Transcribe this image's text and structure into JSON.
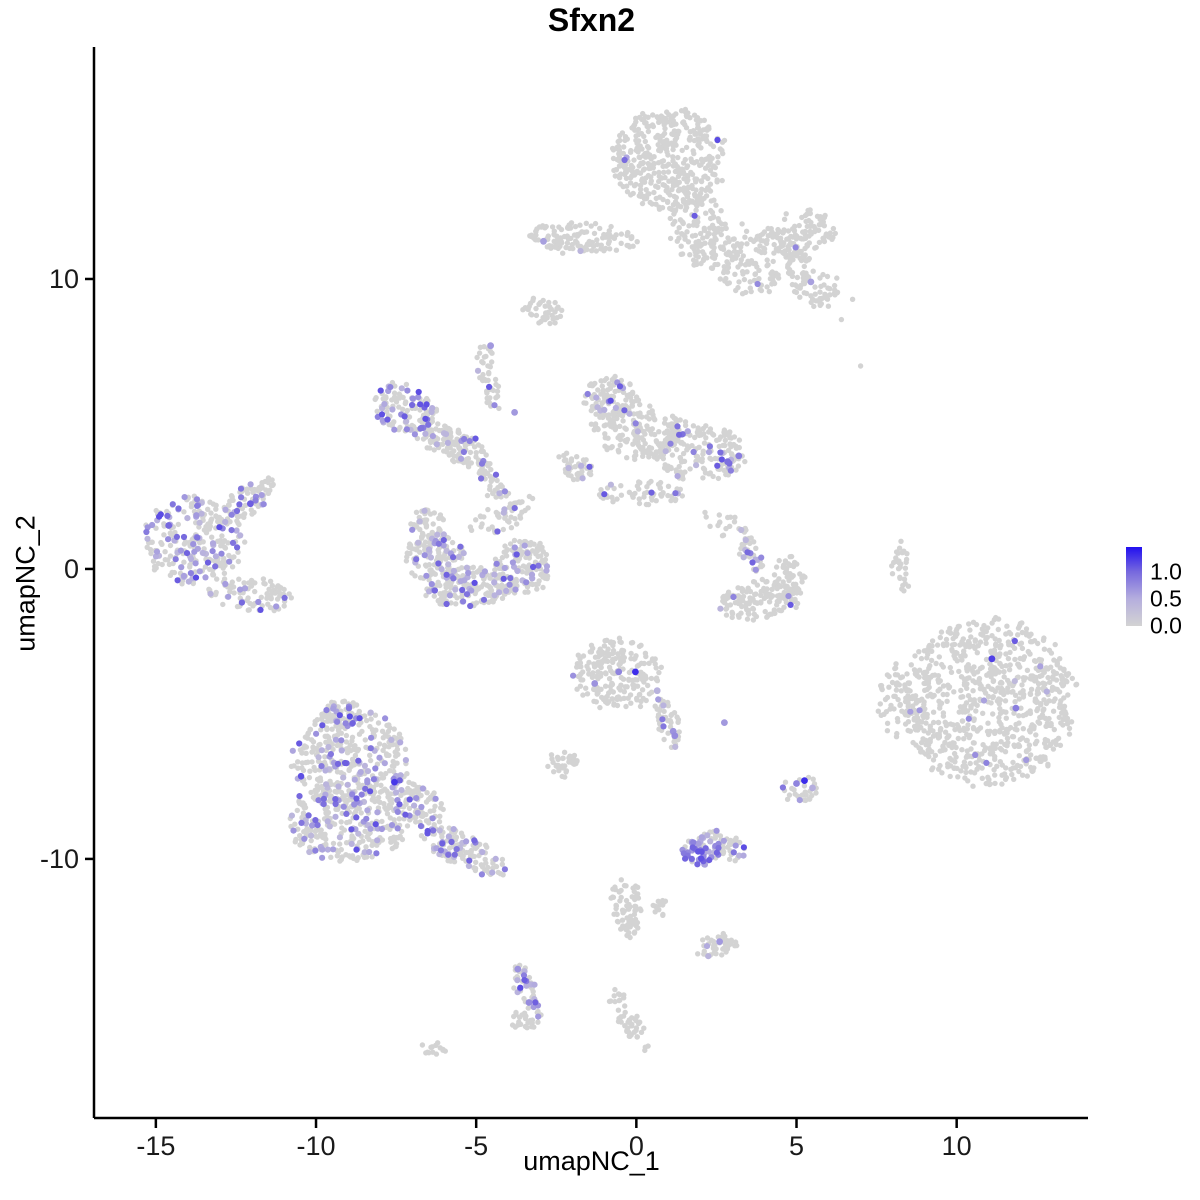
{
  "title": "Sfxn2",
  "axes": {
    "x": {
      "label": "umapNC_1",
      "ticks": [
        -15,
        -10,
        -5,
        0,
        5,
        10
      ],
      "range": [
        -16.9,
        14.1
      ]
    },
    "y": {
      "label": "umapNC_2",
      "ticks": [
        -10,
        0,
        10
      ],
      "range": [
        -18.9,
        18.0
      ]
    }
  },
  "legend": {
    "labels": [
      "1.0",
      "0.5",
      "0.0"
    ],
    "values": [
      1.0,
      0.5,
      0.0
    ],
    "max_value": 1.45,
    "gradient_top_color": "#2210F0",
    "gradient_bottom_color": "#D3D3D3"
  },
  "colors": {
    "background": "#ffffff",
    "axis_line": "#000000",
    "tick_text": "#1a1a1a",
    "non_expressing": "#D3D3D3",
    "scale_anchors": [
      [
        0,
        "#D3D3D3"
      ],
      [
        0.5,
        "#B5AEDE"
      ],
      [
        1.0,
        "#7668DE"
      ],
      [
        1.45,
        "#2210F0"
      ]
    ]
  },
  "chart_data": {
    "type": "scatter",
    "title": "Sfxn2",
    "xlabel": "umapNC_1",
    "ylabel": "umapNC_2",
    "xlim": [
      -16.9,
      14.1
    ],
    "ylim": [
      -18.9,
      18.0
    ],
    "grid": false,
    "legend_position": "right",
    "seed": 20240613,
    "point_radius_gray": 2.7,
    "point_radius_expr": 3.1,
    "point_radius_accent": 3.4,
    "expression_value_base": 0.35,
    "expression_value_span": 0.8,
    "clusters": [
      {
        "name": "top-main",
        "cx": 1.0,
        "cy": 14.1,
        "a": 1.75,
        "b": 1.55,
        "rot": 0,
        "n": 430,
        "frac": 0.02
      },
      {
        "name": "top-neck",
        "cx": 1.95,
        "cy": 11.7,
        "a": 0.9,
        "b": 1.15,
        "rot": 0,
        "n": 130,
        "frac": 0.008
      },
      {
        "name": "top-right-arm",
        "cx": 3.85,
        "cy": 10.6,
        "a": 1.45,
        "b": 0.95,
        "rot": -15,
        "n": 170,
        "frac": 0.006
      },
      {
        "name": "top-right-lobe",
        "cx": 5.3,
        "cy": 11.5,
        "a": 0.95,
        "b": 0.8,
        "rot": 0,
        "n": 90,
        "frac": 0.01
      },
      {
        "name": "top-right-tip",
        "cx": 5.6,
        "cy": 9.7,
        "a": 0.75,
        "b": 0.6,
        "rot": 0,
        "n": 60,
        "frac": 0.02
      },
      {
        "name": "top-left-band",
        "cx": -1.8,
        "cy": 11.4,
        "a": 1.75,
        "b": 0.45,
        "rot": 3,
        "n": 130,
        "frac": 0.008
      },
      {
        "name": "top-left-blob",
        "cx": -2.9,
        "cy": 8.85,
        "a": 0.6,
        "b": 0.4,
        "rot": 0,
        "n": 40,
        "frac": 0.0
      },
      {
        "name": "wing-tip",
        "cx": -7.2,
        "cy": 5.5,
        "a": 1.0,
        "b": 0.72,
        "rot": 25,
        "n": 120,
        "frac": 0.28
      },
      {
        "name": "wing-body",
        "cx": -5.8,
        "cy": 4.35,
        "a": 1.3,
        "b": 0.5,
        "rot": 28,
        "n": 130,
        "frac": 0.1
      },
      {
        "name": "wing-strand",
        "cx": -4.5,
        "cy": 3.0,
        "a": 0.75,
        "b": 0.3,
        "rot": 60,
        "n": 40,
        "frac": 0.06
      },
      {
        "name": "upper-strand",
        "cx": -4.6,
        "cy": 6.6,
        "a": 1.05,
        "b": 0.3,
        "rot": 80,
        "n": 45,
        "frac": 0.05
      },
      {
        "name": "crescent-tip",
        "cx": -6.55,
        "cy": 1.6,
        "a": 0.5,
        "b": 0.45,
        "rot": 0,
        "n": 40,
        "frac": 0.1
      },
      {
        "name": "crescent-left",
        "cx": -6.3,
        "cy": 0.4,
        "a": 0.9,
        "b": 0.8,
        "rot": 0,
        "n": 130,
        "frac": 0.16
      },
      {
        "name": "crescent-bottom",
        "cx": -5.2,
        "cy": -0.65,
        "a": 1.45,
        "b": 0.6,
        "rot": -5,
        "n": 170,
        "frac": 0.22
      },
      {
        "name": "crescent-right",
        "cx": -3.55,
        "cy": 0.05,
        "a": 0.9,
        "b": 0.85,
        "rot": 0,
        "n": 140,
        "frac": 0.12
      },
      {
        "name": "crescent-arc",
        "cx": -4.2,
        "cy": 1.75,
        "a": 1.2,
        "b": 0.4,
        "rot": -25,
        "n": 50,
        "frac": 0.04
      },
      {
        "name": "center-top",
        "cx": -0.8,
        "cy": 5.9,
        "a": 0.9,
        "b": 0.65,
        "rot": 0,
        "n": 110,
        "frac": 0.1
      },
      {
        "name": "center-body",
        "cx": 0.05,
        "cy": 4.7,
        "a": 1.45,
        "b": 0.8,
        "rot": 0,
        "n": 180,
        "frac": 0.05
      },
      {
        "name": "center-right",
        "cx": 2.0,
        "cy": 4.0,
        "a": 1.35,
        "b": 0.85,
        "rot": 0,
        "n": 180,
        "frac": 0.1
      },
      {
        "name": "center-left-spur",
        "cx": -1.95,
        "cy": 3.5,
        "a": 0.6,
        "b": 0.4,
        "rot": 20,
        "n": 45,
        "frac": 0.04
      },
      {
        "name": "center-bottom",
        "cx": 0.1,
        "cy": 2.6,
        "a": 1.5,
        "b": 0.35,
        "rot": 0,
        "n": 60,
        "frac": 0.1
      },
      {
        "name": "far-left-main",
        "cx": -13.8,
        "cy": 1.0,
        "a": 1.55,
        "b": 1.4,
        "rot": 0,
        "n": 260,
        "frac": 0.3
      },
      {
        "name": "far-left-arm",
        "cx": -12.2,
        "cy": 2.3,
        "a": 0.75,
        "b": 0.45,
        "rot": -35,
        "n": 55,
        "frac": 0.25
      },
      {
        "name": "far-left-tail",
        "cx": -12.0,
        "cy": -0.85,
        "a": 1.4,
        "b": 0.5,
        "rot": 5,
        "n": 90,
        "frac": 0.1
      },
      {
        "name": "far-left-tip",
        "cx": -11.6,
        "cy": 2.85,
        "a": 0.3,
        "b": 0.25,
        "rot": 0,
        "n": 15,
        "frac": 0.15
      },
      {
        "name": "bl-upper",
        "cx": -8.9,
        "cy": -6.5,
        "a": 1.75,
        "b": 1.5,
        "rot": 0,
        "n": 330,
        "frac": 0.2
      },
      {
        "name": "bl-lower",
        "cx": -9.0,
        "cy": -8.75,
        "a": 1.9,
        "b": 1.2,
        "rot": 0,
        "n": 310,
        "frac": 0.22
      },
      {
        "name": "bl-bridge",
        "cx": -6.9,
        "cy": -8.1,
        "a": 0.9,
        "b": 0.6,
        "rot": 20,
        "n": 90,
        "frac": 0.2
      },
      {
        "name": "bl-tail",
        "cx": -5.4,
        "cy": -9.7,
        "a": 1.5,
        "b": 0.5,
        "rot": 25,
        "n": 130,
        "frac": 0.27
      },
      {
        "name": "bl-top-tip",
        "cx": -9.2,
        "cy": -5.0,
        "a": 0.6,
        "b": 0.45,
        "rot": 0,
        "n": 55,
        "frac": 0.12
      },
      {
        "name": "cb-main",
        "cx": -0.6,
        "cy": -3.6,
        "a": 1.35,
        "b": 1.1,
        "rot": 0,
        "n": 210,
        "frac": 0.012
      },
      {
        "name": "cb-strand",
        "cx": 1.0,
        "cy": -5.3,
        "a": 0.8,
        "b": 0.35,
        "rot": 75,
        "n": 45,
        "frac": 0.12
      },
      {
        "name": "cb-left-blob",
        "cx": -2.3,
        "cy": -6.7,
        "a": 0.5,
        "b": 0.4,
        "rot": 0,
        "n": 40,
        "frac": 0.0
      },
      {
        "name": "purple-pocket",
        "cx": 2.05,
        "cy": -9.75,
        "a": 0.6,
        "b": 0.45,
        "rot": 0,
        "n": 65,
        "frac": 0.75
      },
      {
        "name": "pocket-gray",
        "cx": 2.9,
        "cy": -9.65,
        "a": 0.45,
        "b": 0.4,
        "rot": 0,
        "n": 35,
        "frac": 0.15
      },
      {
        "name": "pocket-tip",
        "cx": 2.4,
        "cy": -9.15,
        "a": 0.28,
        "b": 0.22,
        "rot": 0,
        "n": 12,
        "frac": 0.1
      },
      {
        "name": "right-main",
        "cx": 11.0,
        "cy": -4.6,
        "a": 2.7,
        "b": 2.55,
        "rot": 0,
        "n": 800,
        "frac": 0.015
      },
      {
        "name": "right-spur",
        "cx": 8.4,
        "cy": -4.55,
        "a": 0.85,
        "b": 1.15,
        "rot": 0,
        "n": 70,
        "frac": 0.02
      },
      {
        "name": "right-strand",
        "cx": 8.25,
        "cy": 0.1,
        "a": 0.85,
        "b": 0.25,
        "rot": 85,
        "n": 30,
        "frac": 0.0
      },
      {
        "name": "rc-bottom",
        "cx": 3.85,
        "cy": -1.05,
        "a": 1.25,
        "b": 0.55,
        "rot": -8,
        "n": 130,
        "frac": 0.01
      },
      {
        "name": "rc-right",
        "cx": 4.8,
        "cy": -0.45,
        "a": 0.5,
        "b": 0.8,
        "rot": 0,
        "n": 55,
        "frac": 0.02
      },
      {
        "name": "rc-strand",
        "cx": 3.5,
        "cy": 0.65,
        "a": 0.8,
        "b": 0.3,
        "rot": 62,
        "n": 40,
        "frac": 0.3
      },
      {
        "name": "rc-sparse",
        "cx": 2.65,
        "cy": 1.65,
        "a": 0.5,
        "b": 0.45,
        "rot": 0,
        "n": 14,
        "frac": 0.0
      },
      {
        "name": "blue-spot",
        "cx": 5.15,
        "cy": -7.6,
        "a": 0.55,
        "b": 0.4,
        "rot": 0,
        "n": 26,
        "frac": 0.1
      },
      {
        "name": "low-strand",
        "cx": -0.3,
        "cy": -11.6,
        "a": 1.0,
        "b": 0.45,
        "rot": 80,
        "n": 75,
        "frac": 0.0
      },
      {
        "name": "low-blob",
        "cx": 0.8,
        "cy": -11.65,
        "a": 0.3,
        "b": 0.25,
        "rot": 0,
        "n": 14,
        "frac": 0.0
      },
      {
        "name": "low-right",
        "cx": 2.5,
        "cy": -13.0,
        "a": 0.6,
        "b": 0.35,
        "rot": -10,
        "n": 40,
        "frac": 0.1
      },
      {
        "name": "bottom-strand",
        "cx": -3.4,
        "cy": -14.7,
        "a": 1.05,
        "b": 0.33,
        "rot": 72,
        "n": 55,
        "frac": 0.3
      },
      {
        "name": "bottom-blob",
        "cx": -3.6,
        "cy": -15.6,
        "a": 0.4,
        "b": 0.3,
        "rot": 0,
        "n": 20,
        "frac": 0.0
      },
      {
        "name": "bottom-tiny",
        "cx": -6.25,
        "cy": -16.55,
        "a": 0.4,
        "b": 0.22,
        "rot": 0,
        "n": 14,
        "frac": 0.0
      },
      {
        "name": "bottom-diag",
        "cx": -0.2,
        "cy": -15.6,
        "a": 1.15,
        "b": 0.3,
        "rot": 60,
        "n": 50,
        "frac": 0.02
      }
    ],
    "singles": [
      [
        7.0,
        7.0
      ],
      [
        -2.85,
        8.6
      ],
      [
        6.4,
        8.6
      ],
      [
        6.75,
        9.3
      ],
      [
        3.3,
        11.9
      ],
      [
        2.6,
        1.6
      ]
    ],
    "accents": [
      [
        -0.03,
        -3.55,
        1.3
      ],
      [
        -7.55,
        -7.35,
        1.25
      ],
      [
        5.25,
        -7.3,
        1.3
      ],
      [
        11.1,
        -3.1,
        1.2
      ],
      [
        11.85,
        -4.8,
        0.85
      ],
      [
        -12.05,
        2.25,
        1.05
      ],
      [
        -14.6,
        1.5,
        1.0
      ],
      [
        2.85,
        3.7,
        0.95
      ],
      [
        3.2,
        3.9,
        0.85
      ],
      [
        5.45,
        9.9,
        0.6
      ],
      [
        -2.9,
        11.3,
        0.6
      ],
      [
        -4.55,
        7.7,
        0.65
      ],
      [
        -3.8,
        5.4,
        0.65
      ],
      [
        2.75,
        -5.3,
        0.65
      ],
      [
        2.6,
        -12.85,
        0.65
      ],
      [
        -3.7,
        -13.8,
        0.7
      ],
      [
        -3.35,
        -14.95,
        0.75
      ],
      [
        5.0,
        -7.4,
        0.8
      ],
      [
        5.5,
        -7.55,
        0.5
      ],
      [
        -0.55,
        -3.55,
        0.8
      ],
      [
        -1.3,
        -3.95,
        0.7
      ],
      [
        0.65,
        -4.2,
        0.45
      ],
      [
        1.15,
        -5.6,
        0.7
      ],
      [
        1.2,
        -5.75,
        0.75
      ]
    ]
  }
}
